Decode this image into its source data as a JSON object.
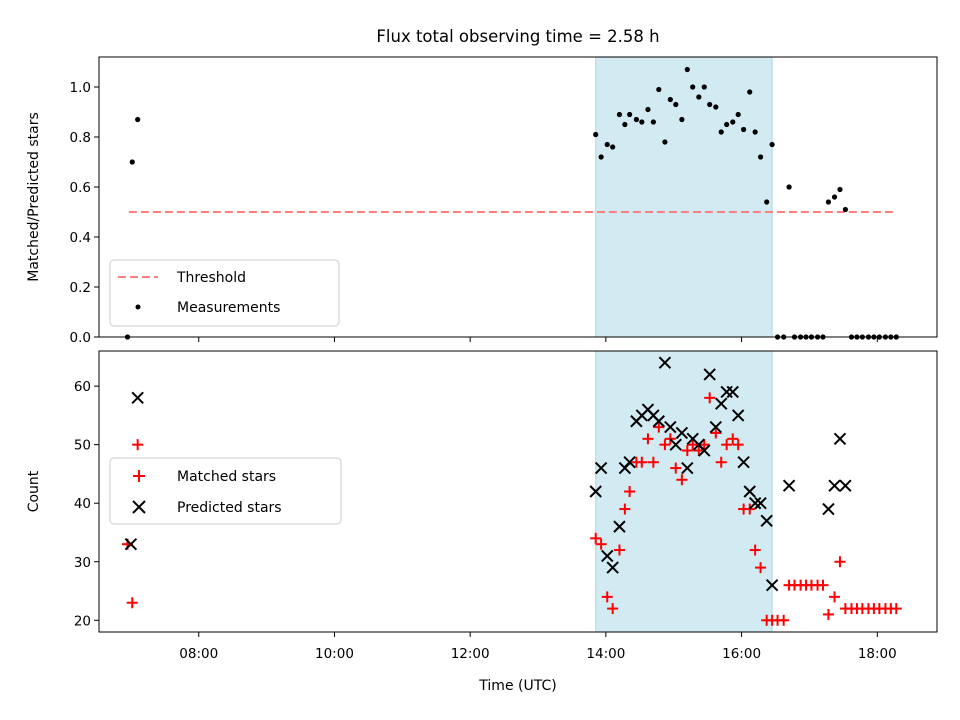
{
  "title": "Flux total observing time = 2.58 h",
  "colors": {
    "threshold": "#ff7f7f",
    "measurement": "#000000",
    "matched": "#ff0000",
    "predicted": "#000000",
    "shade": "#add8e6"
  },
  "chart_data": [
    {
      "type": "scatter",
      "ylabel": "Matched/Predicted stars",
      "xlim": [
        6.53,
        18.88
      ],
      "ylim": [
        0,
        1.12
      ],
      "yticks": [
        0.0,
        0.2,
        0.4,
        0.6,
        0.8,
        1.0
      ],
      "ytick_labels": [
        "0.0",
        "0.2",
        "0.4",
        "0.6",
        "0.8",
        "1.0"
      ],
      "shaded_span": [
        13.85,
        16.45
      ],
      "legend": {
        "location": "lower-left",
        "entries": [
          "Threshold",
          "Measurements"
        ]
      },
      "threshold": {
        "name": "Threshold",
        "value": 0.5,
        "x": [
          6.97,
          18.25
        ],
        "style": "dashed"
      },
      "series": [
        {
          "name": "Measurements",
          "marker": "dot",
          "x": [
            6.95,
            7.02,
            7.1,
            13.85,
            13.93,
            14.02,
            14.1,
            14.2,
            14.28,
            14.35,
            14.45,
            14.53,
            14.62,
            14.7,
            14.78,
            14.87,
            14.95,
            15.03,
            15.12,
            15.2,
            15.28,
            15.37,
            15.45,
            15.53,
            15.62,
            15.7,
            15.78,
            15.87,
            15.95,
            16.03,
            16.12,
            16.2,
            16.28,
            16.37,
            16.45,
            16.53,
            16.62,
            16.7,
            16.78,
            16.87,
            16.95,
            17.03,
            17.12,
            17.2,
            17.28,
            17.37,
            17.45,
            17.53,
            17.62,
            17.7,
            17.78,
            17.87,
            17.95,
            18.03,
            18.12,
            18.2,
            18.28
          ],
          "y": [
            0.0,
            0.7,
            0.87,
            0.81,
            0.72,
            0.77,
            0.76,
            0.89,
            0.85,
            0.89,
            0.87,
            0.86,
            0.91,
            0.86,
            0.99,
            0.78,
            0.95,
            0.93,
            0.87,
            1.07,
            1.0,
            0.96,
            1.0,
            0.93,
            0.92,
            0.82,
            0.85,
            0.86,
            0.89,
            0.83,
            0.98,
            0.82,
            0.72,
            0.54,
            0.77,
            0.0,
            0.0,
            0.6,
            0.0,
            0.0,
            0.0,
            0.0,
            0.0,
            0.0,
            0.54,
            0.56,
            0.59,
            0.51,
            0.0,
            0.0,
            0.0,
            0.0,
            0.0,
            0.0,
            0.0,
            0.0,
            0.0
          ]
        }
      ]
    },
    {
      "type": "scatter",
      "xlabel": "Time (UTC)",
      "ylabel": "Count",
      "xlim": [
        6.53,
        18.88
      ],
      "ylim": [
        18,
        66
      ],
      "xticks": [
        8,
        10,
        12,
        14,
        16,
        18
      ],
      "xtick_labels": [
        "08:00",
        "10:00",
        "12:00",
        "14:00",
        "16:00",
        "18:00"
      ],
      "yticks": [
        20,
        30,
        40,
        50,
        60
      ],
      "ytick_labels": [
        "20",
        "30",
        "40",
        "50",
        "60"
      ],
      "shaded_span": [
        13.85,
        16.45
      ],
      "legend": {
        "location": "center-left",
        "entries": [
          "Matched stars",
          "Predicted stars"
        ]
      },
      "series": [
        {
          "name": "Matched stars",
          "marker": "plus",
          "x": [
            6.95,
            7.02,
            7.1,
            13.85,
            13.93,
            14.02,
            14.1,
            14.2,
            14.28,
            14.35,
            14.45,
            14.53,
            14.62,
            14.7,
            14.78,
            14.87,
            14.95,
            15.03,
            15.12,
            15.2,
            15.28,
            15.37,
            15.45,
            15.53,
            15.62,
            15.7,
            15.78,
            15.87,
            15.95,
            16.03,
            16.12,
            16.2,
            16.28,
            16.37,
            16.45,
            16.53,
            16.62,
            16.7,
            16.78,
            16.87,
            16.95,
            17.03,
            17.12,
            17.2,
            17.28,
            17.37,
            17.45,
            17.53,
            17.62,
            17.7,
            17.78,
            17.87,
            17.95,
            18.03,
            18.12,
            18.2,
            18.28
          ],
          "y": [
            33,
            23,
            50,
            34,
            33,
            24,
            22,
            32,
            39,
            42,
            47,
            47,
            51,
            47,
            53,
            50,
            51,
            46,
            44,
            49,
            50,
            49,
            50,
            58,
            52,
            47,
            50,
            51,
            50,
            39,
            39,
            32,
            29,
            20,
            20,
            20,
            20,
            26,
            26,
            26,
            26,
            26,
            26,
            26,
            21,
            24,
            30,
            22,
            22,
            22,
            22,
            22,
            22,
            22,
            22,
            22,
            22
          ]
        },
        {
          "name": "Predicted stars",
          "marker": "x",
          "x": [
            7.0,
            7.1,
            13.85,
            13.93,
            14.02,
            14.1,
            14.2,
            14.28,
            14.35,
            14.45,
            14.53,
            14.62,
            14.7,
            14.78,
            14.87,
            14.95,
            15.03,
            15.12,
            15.2,
            15.28,
            15.37,
            15.45,
            15.53,
            15.62,
            15.7,
            15.78,
            15.87,
            15.95,
            16.03,
            16.12,
            16.2,
            16.28,
            16.37,
            16.45,
            16.7,
            17.28,
            17.37,
            17.45,
            17.53
          ],
          "y": [
            33,
            58,
            42,
            46,
            31,
            29,
            36,
            46,
            47,
            54,
            55,
            56,
            55,
            54,
            64,
            53,
            50,
            52,
            46,
            51,
            50,
            49,
            62,
            53,
            57,
            59,
            59,
            55,
            47,
            42,
            40,
            40,
            37,
            26,
            43,
            39,
            43,
            51,
            43
          ]
        }
      ]
    }
  ]
}
